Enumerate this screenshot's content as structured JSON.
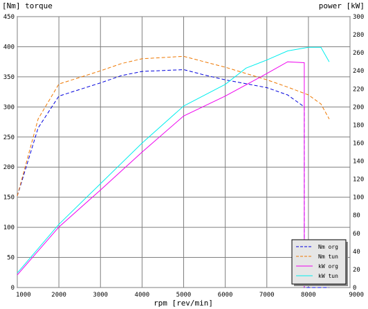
{
  "chart_data": {
    "type": "line",
    "left_axis_title": "[Nm] torque",
    "right_axis_title": "power [kW]",
    "xlabel": "rpm [rev/min]",
    "xlim": [
      1000,
      9000
    ],
    "ylim_left": [
      0,
      450
    ],
    "ylim_right": [
      0,
      300
    ],
    "x_ticks": [
      "1000",
      "2000",
      "3000",
      "4000",
      "5000",
      "6000",
      "7000",
      "8000",
      "9000"
    ],
    "left_ticks": [
      "0",
      "50",
      "100",
      "150",
      "200",
      "250",
      "300",
      "350",
      "400",
      "450"
    ],
    "right_ticks": [
      "0",
      "20",
      "40",
      "60",
      "80",
      "100",
      "120",
      "140",
      "160",
      "180",
      "200",
      "220",
      "240",
      "260",
      "280",
      "300"
    ],
    "grid": true,
    "legend_position": "bottom-right",
    "series": [
      {
        "name": "Nm org",
        "axis": "left",
        "style": "dashed",
        "color": "#0000dd",
        "points": [
          [
            1000,
            152
          ],
          [
            1500,
            265
          ],
          [
            2000,
            318
          ],
          [
            3000,
            340
          ],
          [
            3500,
            352
          ],
          [
            4000,
            359
          ],
          [
            5000,
            362
          ],
          [
            5500,
            353
          ],
          [
            6000,
            345
          ],
          [
            7000,
            332
          ],
          [
            7500,
            320
          ],
          [
            7900,
            300
          ],
          [
            7900,
            0
          ],
          [
            8500,
            0
          ]
        ]
      },
      {
        "name": "Nm tun",
        "axis": "left",
        "style": "dashed",
        "color": "#ee7700",
        "points": [
          [
            1000,
            152
          ],
          [
            1500,
            280
          ],
          [
            2000,
            338
          ],
          [
            3000,
            360
          ],
          [
            3500,
            372
          ],
          [
            4000,
            380
          ],
          [
            5000,
            384
          ],
          [
            5500,
            375
          ],
          [
            6000,
            366
          ],
          [
            7000,
            345
          ],
          [
            7500,
            333
          ],
          [
            8000,
            320
          ],
          [
            8300,
            305
          ],
          [
            8500,
            280
          ]
        ]
      },
      {
        "name": "kW org",
        "axis": "right",
        "style": "solid",
        "color": "#ee00ee",
        "points": [
          [
            1000,
            14
          ],
          [
            2000,
            67
          ],
          [
            3000,
            108
          ],
          [
            4000,
            150
          ],
          [
            5000,
            190
          ],
          [
            6000,
            212
          ],
          [
            7000,
            237
          ],
          [
            7500,
            250
          ],
          [
            7900,
            249
          ],
          [
            7900,
            0
          ]
        ]
      },
      {
        "name": "kW tun",
        "axis": "right",
        "style": "solid",
        "color": "#00eeee",
        "points": [
          [
            1000,
            16
          ],
          [
            2000,
            70
          ],
          [
            3000,
            115
          ],
          [
            4000,
            160
          ],
          [
            5000,
            201
          ],
          [
            6000,
            225
          ],
          [
            6500,
            243
          ],
          [
            7000,
            252
          ],
          [
            7500,
            262
          ],
          [
            8000,
            266
          ],
          [
            8300,
            266
          ],
          [
            8500,
            250
          ]
        ]
      }
    ]
  }
}
